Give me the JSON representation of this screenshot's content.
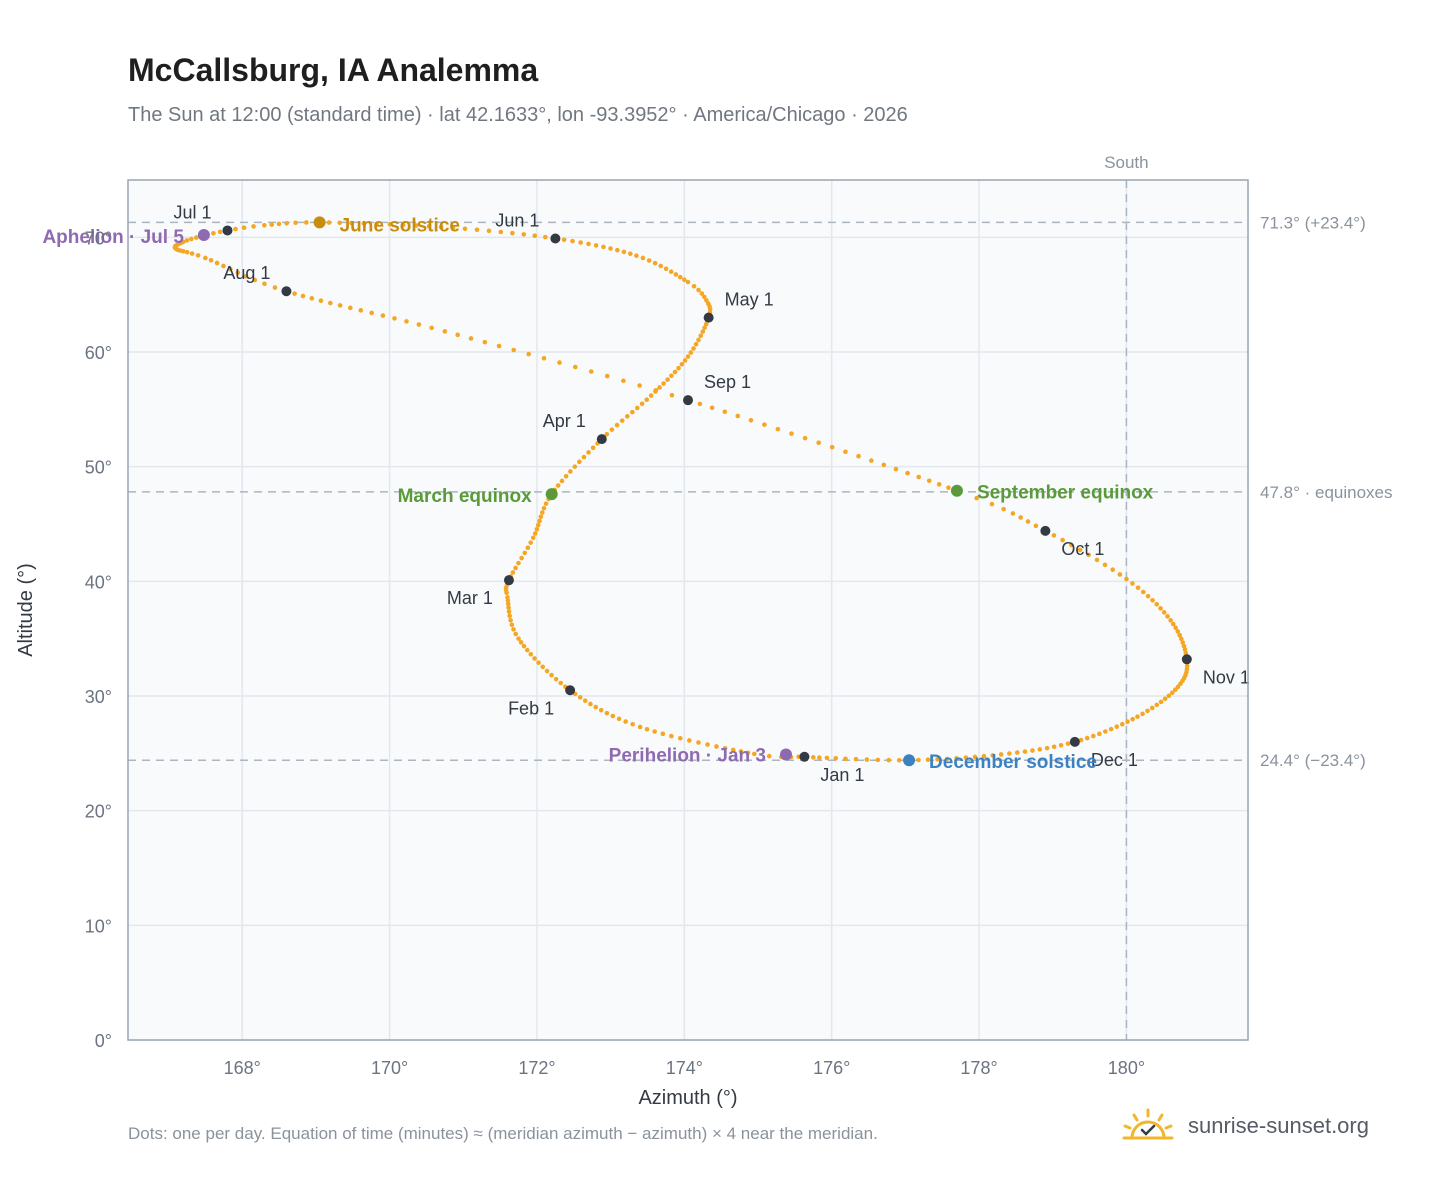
{
  "title": "McCallsburg, IA Analemma",
  "subtitle": "The Sun at 12:00 (standard time) · lat 42.1633°, lon -93.3952° · America/Chicago · 2026",
  "footnote": "Dots: one per day. Equation of time (minutes) ≈ (meridian azimuth − azimuth) × 4 near the meridian.",
  "brand": {
    "name": "sunrise-sunset.org",
    "logo_icon": "sun-logo-icon"
  },
  "colors": {
    "path": "#f5a623",
    "month": "#333a44",
    "aphelion": "#8e6bb0",
    "june": "#c88d0f",
    "equinox": "#5a9a3a",
    "december": "#3c82c2",
    "grid": "#e3e8ee",
    "ref": "#aab6c2",
    "plot_bg": "#f8fafc",
    "frame": "#9aa5b2",
    "axis_text": "#6b7480"
  },
  "chart_data": {
    "type": "scatter",
    "xlabel": "Azimuth (°)",
    "ylabel": "Altitude (°)",
    "xlim": [
      166.45,
      181.65
    ],
    "ylim": [
      0,
      75
    ],
    "xticks": [
      168,
      170,
      172,
      174,
      176,
      178,
      180
    ],
    "xtick_labels": [
      "168°",
      "170°",
      "172°",
      "174°",
      "176°",
      "178°",
      "180°"
    ],
    "yticks": [
      0,
      10,
      20,
      30,
      40,
      50,
      60,
      70
    ],
    "ytick_labels": [
      "0°",
      "10°",
      "20°",
      "30°",
      "40°",
      "50°",
      "60°",
      "70°"
    ],
    "south_line": {
      "x": 180,
      "label": "South"
    },
    "reference_lines": [
      {
        "y": 71.3,
        "label": "71.3° (+23.4°)"
      },
      {
        "y": 47.8,
        "label": "47.8° · equinoxes"
      },
      {
        "y": 24.4,
        "label": "24.4° (−23.4°)"
      }
    ],
    "months": [
      {
        "label": "Jan 1",
        "az": 175.63,
        "alt": 24.7
      },
      {
        "label": "Feb 1",
        "az": 172.45,
        "alt": 30.5
      },
      {
        "label": "Mar 1",
        "az": 171.62,
        "alt": 40.1
      },
      {
        "label": "Apr 1",
        "az": 172.88,
        "alt": 52.4
      },
      {
        "label": "May 1",
        "az": 174.33,
        "alt": 63.0
      },
      {
        "label": "Jun 1",
        "az": 172.25,
        "alt": 69.9
      },
      {
        "label": "Jul 1",
        "az": 167.8,
        "alt": 70.6
      },
      {
        "label": "Aug 1",
        "az": 168.6,
        "alt": 65.3
      },
      {
        "label": "Sep 1",
        "az": 174.05,
        "alt": 55.8
      },
      {
        "label": "Oct 1",
        "az": 178.9,
        "alt": 44.4
      },
      {
        "label": "Nov 1",
        "az": 180.82,
        "alt": 33.2
      },
      {
        "label": "Dec 1",
        "az": 179.3,
        "alt": 26.0
      }
    ],
    "events": [
      {
        "label": "Perihelion · Jan 3",
        "az": 175.38,
        "alt": 24.9,
        "color": "#8e6bb0"
      },
      {
        "label": "March equinox",
        "az": 172.2,
        "alt": 47.6,
        "color": "#5a9a3a"
      },
      {
        "label": "June solstice",
        "az": 169.05,
        "alt": 71.3,
        "color": "#c88d0f"
      },
      {
        "label": "Aphelion · Jul 5",
        "az": 167.48,
        "alt": 70.2,
        "color": "#8e6bb0"
      },
      {
        "label": "September equinox",
        "az": 177.7,
        "alt": 47.9,
        "color": "#5a9a3a"
      },
      {
        "label": "December solstice",
        "az": 177.05,
        "alt": 24.4,
        "color": "#3c82c2"
      }
    ],
    "path_keypoints": [
      [
        1,
        175.63,
        24.7
      ],
      [
        6,
        174.95,
        24.95
      ],
      [
        20,
        173.4,
        27.3
      ],
      [
        32,
        172.45,
        30.5
      ],
      [
        45,
        171.75,
        35.0
      ],
      [
        55,
        171.6,
        38.6
      ],
      [
        60,
        171.62,
        40.1
      ],
      [
        69,
        171.95,
        43.8
      ],
      [
        79,
        172.2,
        47.6
      ],
      [
        91,
        172.88,
        52.4
      ],
      [
        101,
        173.55,
        56.2
      ],
      [
        111,
        174.05,
        59.6
      ],
      [
        121,
        174.33,
        63.0
      ],
      [
        126,
        174.3,
        64.5
      ],
      [
        131,
        174.05,
        66.1
      ],
      [
        141,
        173.35,
        68.4
      ],
      [
        152,
        172.25,
        69.9
      ],
      [
        162,
        170.7,
        70.9
      ],
      [
        172,
        169.05,
        71.3
      ],
      [
        178,
        168.3,
        71.05
      ],
      [
        182,
        167.8,
        70.6
      ],
      [
        186,
        167.45,
        70.1
      ],
      [
        190,
        167.2,
        69.6
      ],
      [
        196,
        167.1,
        69.0
      ],
      [
        203,
        167.5,
        68.2
      ],
      [
        213,
        168.6,
        65.3
      ],
      [
        228,
        170.75,
        61.8
      ],
      [
        244,
        174.05,
        55.8
      ],
      [
        266,
        177.7,
        47.9
      ],
      [
        274,
        178.9,
        44.4
      ],
      [
        284,
        180.0,
        40.2
      ],
      [
        294,
        180.6,
        36.6
      ],
      [
        305,
        180.82,
        33.2
      ],
      [
        314,
        180.7,
        30.8
      ],
      [
        324,
        180.15,
        28.2
      ],
      [
        335,
        179.3,
        26.0
      ],
      [
        345,
        178.3,
        24.9
      ],
      [
        355,
        177.05,
        24.4
      ],
      [
        365,
        175.75,
        24.65
      ],
      [
        366,
        175.63,
        24.7
      ]
    ],
    "days_per_year": 365
  }
}
